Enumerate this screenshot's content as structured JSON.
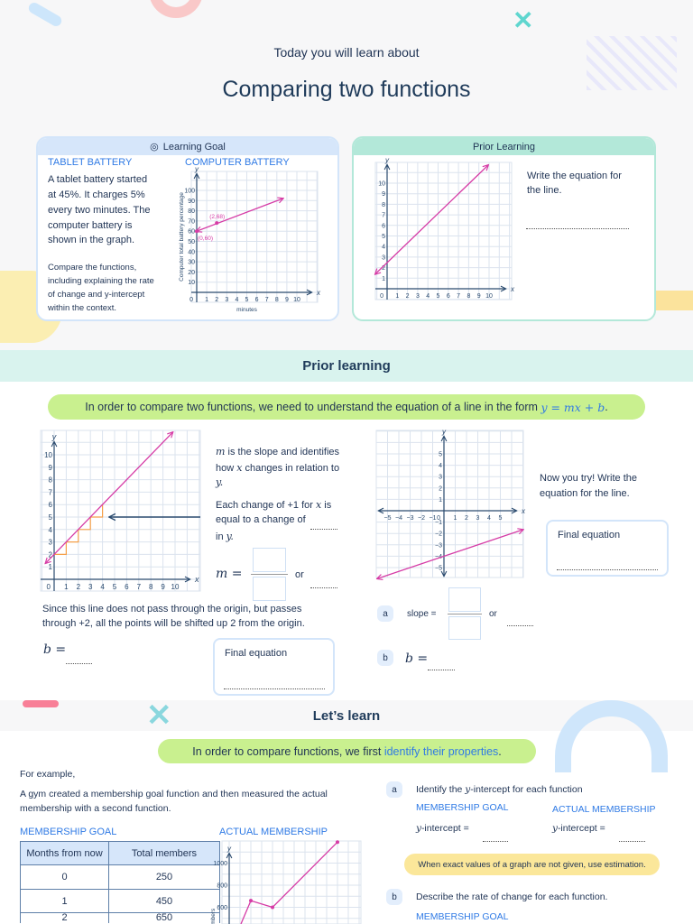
{
  "header": {
    "kicker": "Today you will learn about",
    "title": "Comparing two functions"
  },
  "learning_goal": {
    "title": "Learning Goal",
    "icon": "target-icon",
    "tablet_heading": "TABLET BATTERY",
    "tablet_lines": [
      "A tablet battery started",
      "at 45%. It charges 5%",
      "every two minutes. The",
      "computer battery is",
      "shown in the graph."
    ],
    "compare_lines": [
      "Compare the functions,",
      "including explaining the rate",
      "of change and y-intercept",
      "within the context."
    ],
    "computer_heading": "COMPUTER BATTERY"
  },
  "prior_card": {
    "title": "Prior Learning",
    "lines": [
      "Write the equation for",
      "the line."
    ]
  },
  "section_prior": {
    "title": "Prior learning",
    "pill_text": "In order to compare two functions, we need to understand the equation of a line in the form ",
    "pill_math": "y = mx + b",
    "pill_end": "."
  },
  "slope_explain": {
    "l1a": "m",
    "l1b": " is the slope and identifies",
    "l2a": "how ",
    "l2b": "x",
    "l2c": " changes in relation to",
    "l3": "y.",
    "l4a": "Each change of +1 for ",
    "l4b": "x",
    "l4c": " is",
    "l5": "equal to a change of",
    "l6a": "in ",
    "l6b": "y.",
    "m_eq": "m =",
    "or": "or",
    "since1": "Since this line does not pass through the origin, but passes",
    "since2": "through +2, all the points will be shifted up 2 from the origin.",
    "b_eq": "b =",
    "final_label": "Final equation"
  },
  "try_it": {
    "lines": [
      "Now you try! Write the",
      "equation for the line."
    ],
    "final_label": "Final equation",
    "a": "a",
    "slope_label": "slope =",
    "or": "or",
    "b": "b",
    "b_eq": "b ="
  },
  "section_learn": {
    "title": "Let’s learn",
    "pill_text": "In order to compare functions, we first ",
    "pill_highlight": "identify their properties",
    "pill_end": "."
  },
  "example": {
    "intro": "For example,",
    "lines": [
      "A gym created a membership goal function and then measured the actual",
      "membership with a second function."
    ],
    "goal_heading": "MEMBERSHIP GOAL",
    "actual_heading": "ACTUAL MEMBERSHIP",
    "table": {
      "headers": [
        "Months from now",
        "Total members"
      ],
      "rows": [
        [
          "0",
          "250"
        ],
        [
          "1",
          "450"
        ],
        [
          "2",
          "650"
        ]
      ]
    }
  },
  "questions": {
    "a": "a",
    "a_text": "Identify the ",
    "a_math": "y",
    "a_text2": "-intercept for each function",
    "goal": "MEMBERSHIP GOAL",
    "actual": "ACTUAL MEMBERSHIP",
    "yint_math": "y",
    "yint_text": "-intercept =",
    "hint": "When exact values of a graph are not given, use estimation.",
    "b": "b",
    "b_text": "Describe the rate of change for each function.",
    "b_goal": "MEMBERSHIP GOAL"
  },
  "colors": {
    "line": "#d63ca6",
    "accent_blue": "#2f7ae5",
    "step": "#f5a04a",
    "arrow": "#2a4a6e",
    "pill_green": "#c9f08f",
    "hint_yellow": "#fbe79a"
  },
  "graphs": {
    "computer_battery": {
      "x_label": "x",
      "y_label": "y",
      "origin": "0",
      "x_ticks": [
        1,
        2,
        3,
        4,
        5,
        6,
        7,
        8,
        9,
        10
      ],
      "y_ticks": [
        10,
        20,
        30,
        40,
        50,
        60,
        70,
        80,
        90,
        100
      ],
      "y_title": "Computer total battery percentage",
      "x_title": "minutes",
      "line": [
        [
          0,
          60
        ],
        [
          8.6,
          92
        ]
      ],
      "points": [
        {
          "x": 0,
          "y": 60,
          "label": "(0,60)"
        },
        {
          "x": 2,
          "y": 68,
          "label": "(2,68)"
        }
      ]
    },
    "prior_card": {
      "x_label": "x",
      "y_label": "y",
      "origin": "0",
      "x_ticks": [
        1,
        2,
        3,
        4,
        5,
        6,
        7,
        8,
        9,
        10
      ],
      "y_ticks": [
        1,
        2,
        3,
        4,
        5,
        6,
        7,
        8,
        9,
        10
      ],
      "line": [
        [
          -1.15,
          1.4
        ],
        [
          9.9,
          11.7
        ]
      ]
    },
    "slope_demo": {
      "x_label": "x",
      "y_label": "y",
      "origin": "0",
      "x_ticks": [
        1,
        2,
        3,
        4,
        5,
        6,
        7,
        8,
        9,
        10
      ],
      "y_ticks": [
        1,
        2,
        3,
        4,
        5,
        6,
        7,
        8,
        9,
        10
      ],
      "line": [
        [
          -0.7,
          1.3
        ],
        [
          9.8,
          11.8
        ]
      ],
      "steps": [
        [
          0,
          2
        ],
        [
          1,
          3
        ],
        [
          2,
          4
        ],
        [
          3,
          5
        ]
      ]
    },
    "try_it": {
      "x_label": "x",
      "y_label": "y",
      "origin": "0",
      "x_ticks": [
        -5,
        -4,
        -3,
        -2,
        -1,
        1,
        2,
        3,
        4,
        5
      ],
      "y_ticks": [
        -5,
        -4,
        -3,
        -2,
        -1,
        1,
        2,
        3,
        4,
        5
      ],
      "line": [
        [
          -5.9,
          -5.97
        ],
        [
          7,
          -1.67
        ]
      ]
    },
    "actual_membership": {
      "y_label": "y",
      "y_ticks": [
        600,
        800,
        1000
      ],
      "y_title": "Total members",
      "line": [
        [
          1,
          430
        ],
        [
          2,
          660
        ],
        [
          4,
          600
        ],
        [
          10,
          1190
        ]
      ],
      "points": [
        {
          "x": 2,
          "y": 660
        },
        {
          "x": 4,
          "y": 600
        },
        {
          "x": 10,
          "y": 1190
        }
      ]
    }
  }
}
